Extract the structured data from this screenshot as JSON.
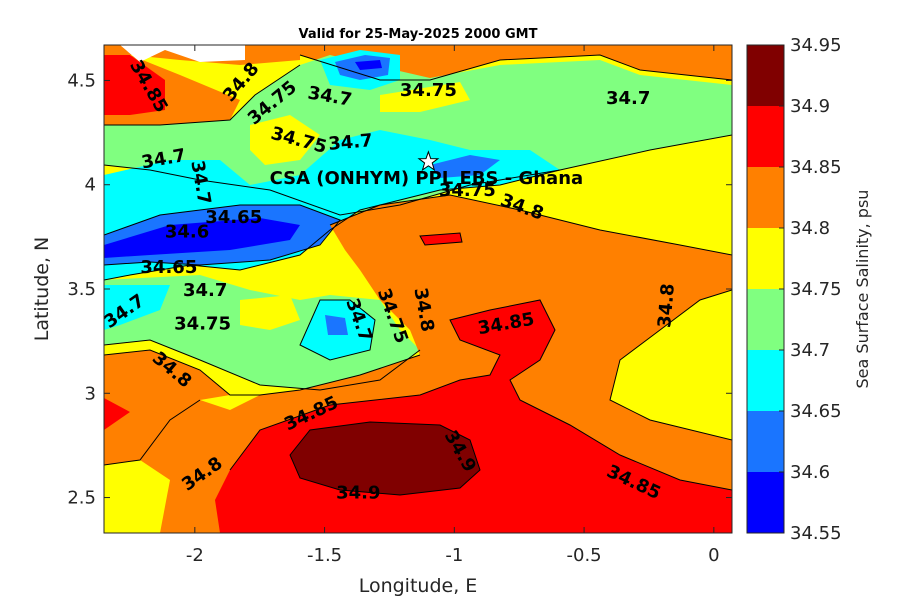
{
  "chart_data": {
    "type": "heatmap",
    "title": "Valid for 25-May-2025 2000 GMT",
    "xlabel": "Longitude, E",
    "ylabel": "Latitude, N",
    "xlim": [
      -2.35,
      0.07
    ],
    "ylim": [
      2.33,
      4.67
    ],
    "xticks": [
      -2,
      -1.5,
      -1,
      -0.5,
      0
    ],
    "xtick_labels": [
      "-2",
      "-1.5",
      "-1",
      "-0.5",
      "0"
    ],
    "yticks": [
      2.5,
      3,
      3.5,
      4,
      4.5
    ],
    "ytick_labels": [
      "2.5",
      "3",
      "3.5",
      "4",
      "4.5"
    ],
    "colorbar": {
      "label": "Sea Surface Salinity, psu",
      "levels": [
        34.55,
        34.6,
        34.65,
        34.7,
        34.75,
        34.8,
        34.85,
        34.9,
        34.95
      ],
      "level_labels": [
        "34.55",
        "34.6",
        "34.65",
        "34.7",
        "34.75",
        "34.8",
        "34.85",
        "34.9",
        "34.95"
      ],
      "colors": [
        "#0000ff",
        "#1a75ff",
        "#00ffff",
        "#80ff80",
        "#ffff00",
        "#ff8000",
        "#ff0000",
        "#800000"
      ]
    },
    "site": {
      "name": "CSA (ONHYM) PPL EBS - Ghana",
      "lon": -1.1,
      "lat": 4.11
    },
    "contour_labels": [
      {
        "text": "34.85",
        "lon": -2.18,
        "lat": 4.47,
        "rot": 60
      },
      {
        "text": "34.8",
        "lon": -1.82,
        "lat": 4.49,
        "rot": -50
      },
      {
        "text": "34.75",
        "lon": -1.7,
        "lat": 4.39,
        "rot": -40
      },
      {
        "text": "34.7",
        "lon": -1.48,
        "lat": 4.42,
        "rot": 10
      },
      {
        "text": "34.75",
        "lon": -1.1,
        "lat": 4.45,
        "rot": 0
      },
      {
        "text": "34.7",
        "lon": -0.33,
        "lat": 4.41,
        "rot": 0
      },
      {
        "text": "34.75",
        "lon": -1.6,
        "lat": 4.21,
        "rot": 15
      },
      {
        "text": "34.7",
        "lon": -1.4,
        "lat": 4.2,
        "rot": -5
      },
      {
        "text": "34.7",
        "lon": -2.12,
        "lat": 4.12,
        "rot": -10
      },
      {
        "text": "34.7",
        "lon": -1.98,
        "lat": 4.01,
        "rot": 80
      },
      {
        "text": "34.65",
        "lon": -1.85,
        "lat": 3.84,
        "rot": 0
      },
      {
        "text": "34.6",
        "lon": -2.03,
        "lat": 3.77,
        "rot": 0
      },
      {
        "text": "34.65",
        "lon": -2.1,
        "lat": 3.6,
        "rot": 0
      },
      {
        "text": "34.7",
        "lon": -1.96,
        "lat": 3.49,
        "rot": 0
      },
      {
        "text": "34.7",
        "lon": -2.27,
        "lat": 3.39,
        "rot": -35
      },
      {
        "text": "34.75",
        "lon": -1.97,
        "lat": 3.33,
        "rot": 0
      },
      {
        "text": "34.8",
        "lon": -2.09,
        "lat": 3.11,
        "rot": 40
      },
      {
        "text": "34.7",
        "lon": -1.37,
        "lat": 3.35,
        "rot": 70
      },
      {
        "text": "34.75",
        "lon": -1.24,
        "lat": 3.37,
        "rot": 70
      },
      {
        "text": "34.8",
        "lon": -1.12,
        "lat": 3.4,
        "rot": 80
      },
      {
        "text": "34.85",
        "lon": -0.8,
        "lat": 3.33,
        "rot": -10
      },
      {
        "text": "34.8",
        "lon": -0.18,
        "lat": 3.42,
        "rot": -85
      },
      {
        "text": "34.75",
        "lon": -0.95,
        "lat": 3.97,
        "rot": 0
      },
      {
        "text": "34.8",
        "lon": -0.74,
        "lat": 3.89,
        "rot": 20
      },
      {
        "text": "34.85",
        "lon": -1.55,
        "lat": 2.9,
        "rot": -25
      },
      {
        "text": "34.9",
        "lon": -0.98,
        "lat": 2.72,
        "rot": 60
      },
      {
        "text": "34.8",
        "lon": -1.97,
        "lat": 2.61,
        "rot": -35
      },
      {
        "text": "34.9",
        "lon": -1.37,
        "lat": 2.52,
        "rot": 0
      },
      {
        "text": "34.85",
        "lon": -0.31,
        "lat": 2.57,
        "rot": 25
      }
    ]
  }
}
